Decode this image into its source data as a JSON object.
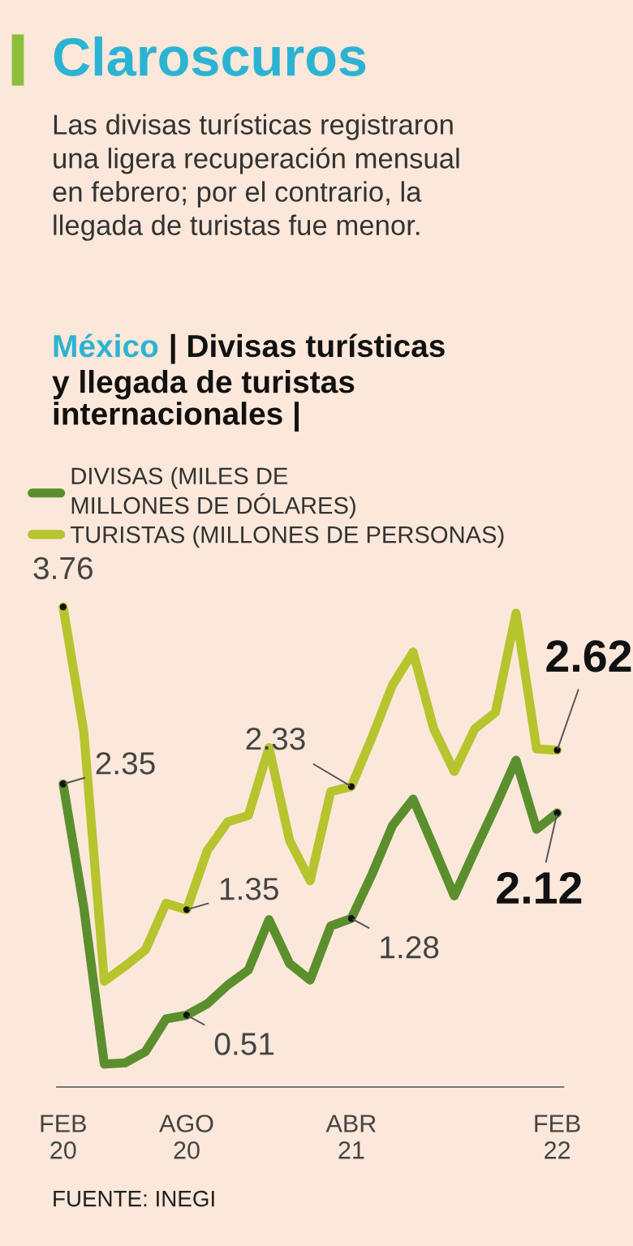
{
  "chart_data": {
    "type": "line",
    "title": "Claroscuros",
    "subtitle": "Las divisas turísticas registraron\nuna ligera recuperación mensual\nen febrero; por el contrario, la\nllegada de turistas fue menor.",
    "annotations": [
      "México",
      "| Divisas turísticas",
      "y llegada de turistas\ninternacionales |",
      "FUENTE: INEGI"
    ],
    "categories": [
      "FEB\n20",
      null,
      null,
      null,
      null,
      null,
      "AGO\n20",
      null,
      null,
      null,
      null,
      null,
      null,
      null,
      "ABR\n21",
      null,
      null,
      null,
      null,
      null,
      null,
      null,
      null,
      null,
      "FEB\n22"
    ],
    "series": [
      {
        "name": "DIVISAS (MILES DE\nMILLONES DE DÓLARES)",
        "color": "#5b8f2d",
        "values": [
          2.35,
          1.37,
          0.12,
          0.13,
          0.22,
          0.48,
          0.51,
          0.6,
          0.75,
          0.87,
          1.27,
          0.92,
          0.79,
          1.22,
          1.28,
          1.63,
          2.02,
          2.23,
          1.85,
          1.46,
          1.82,
          2.17,
          2.54,
          1.99,
          2.12
        ],
        "value_labels": [
          "2.35",
          null,
          null,
          null,
          null,
          null,
          "0.51",
          null,
          null,
          null,
          null,
          null,
          null,
          null,
          "1.28",
          null,
          null,
          null,
          null,
          null,
          null,
          null,
          null,
          null,
          "2.12"
        ]
      },
      {
        "name": "TURISTAS (MILLONES DE PERSONAS)",
        "color": "#b6c42e",
        "values": [
          3.76,
          2.77,
          0.78,
          0.9,
          1.03,
          1.4,
          1.35,
          1.82,
          2.05,
          2.1,
          2.64,
          1.9,
          1.58,
          2.29,
          2.33,
          2.72,
          3.14,
          3.4,
          2.79,
          2.45,
          2.79,
          2.92,
          3.71,
          2.63,
          2.62
        ],
        "value_labels": [
          "3.76",
          null,
          null,
          null,
          null,
          null,
          "1.35",
          null,
          null,
          null,
          null,
          null,
          null,
          null,
          "2.33",
          null,
          null,
          null,
          null,
          null,
          null,
          null,
          null,
          null,
          "2.62"
        ]
      }
    ],
    "tick_labels": "x",
    "grid": false,
    "legend": "top left",
    "marker": "none",
    "line_style": "solid"
  }
}
